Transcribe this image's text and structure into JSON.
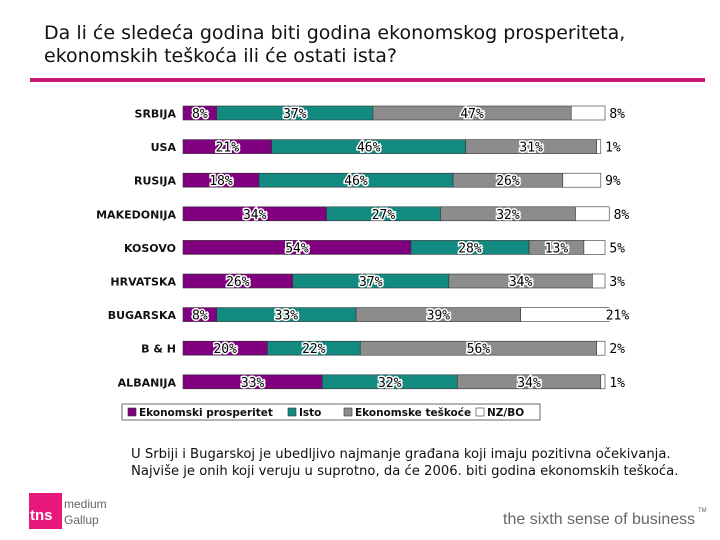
{
  "title": "Da li će sledeća godina biti godina ekonomskog prosperiteta, ekonomskih teškoća ili će ostati ista?",
  "footnote": "U Srbiji i Bugarskoj je ubedljivo najmanje građana koji imaju pozitivna očekivanja. Najviše je onih koji veruju u suprotno, da će 2006. biti godina ekonomskih teškoća.",
  "logo": {
    "mark": "tns",
    "line1": "medium",
    "line2": "Gallup"
  },
  "tagline": "the sixth sense of business",
  "tagline_tm": "TM",
  "colors": {
    "prosperitet": "#800080",
    "isto": "#138a80",
    "teskoce": "#8c8c8c",
    "nz": "#ffffff",
    "accent": "#c8187c"
  },
  "chart_data": {
    "type": "bar",
    "orientation": "horizontal",
    "stacked": true,
    "percent": true,
    "categories": [
      "SRBIJA",
      "USA",
      "RUSIJA",
      "MAKEDONIJA",
      "KOSOVO",
      "HRVATSKA",
      "BUGARSKA",
      "B & H",
      "ALBANIJA"
    ],
    "series": [
      {
        "name": "Ekonomski prosperitet",
        "values": [
          8,
          21,
          18,
          34,
          54,
          26,
          8,
          20,
          33
        ]
      },
      {
        "name": "Isto",
        "values": [
          37,
          46,
          46,
          27,
          28,
          37,
          33,
          22,
          32
        ]
      },
      {
        "name": "Ekonomske teškoće",
        "values": [
          47,
          31,
          26,
          32,
          13,
          34,
          39,
          56,
          34
        ]
      },
      {
        "name": "NZ/BO",
        "values": [
          8,
          1,
          9,
          8,
          5,
          3,
          21,
          2,
          1
        ]
      }
    ],
    "xlim": [
      0,
      100
    ],
    "legend_position": "bottom"
  }
}
